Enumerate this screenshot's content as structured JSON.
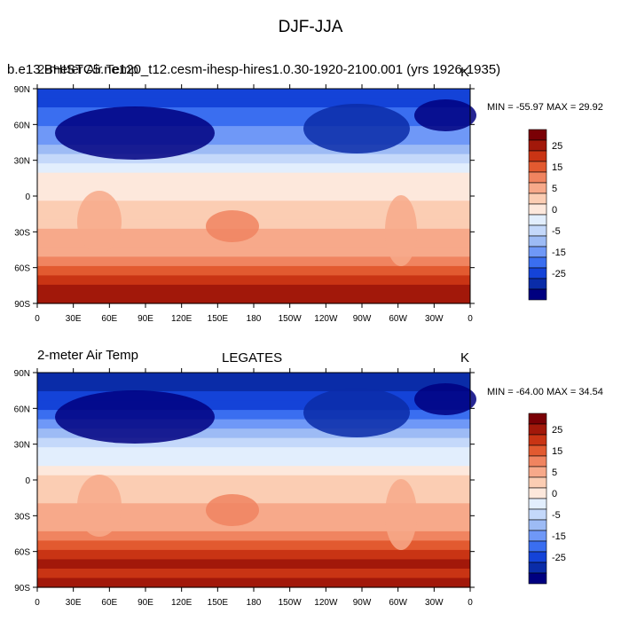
{
  "title": "DJF-JJA",
  "palette": [
    "#000080",
    "#0a2ca8",
    "#1443d8",
    "#3a6ef0",
    "#6f98f7",
    "#9dbbf5",
    "#c4d8fa",
    "#e2eefd",
    "#fde8dc",
    "#fbcdb3",
    "#f7a98a",
    "#f08460",
    "#e25a30",
    "#c93414",
    "#a2180a",
    "#7a0005"
  ],
  "colorbar": {
    "labels": [
      "25",
      "15",
      "5",
      "0",
      "-5",
      "-15",
      "-25"
    ]
  },
  "lat_ticks": [
    "90N",
    "60N",
    "30N",
    "0",
    "30S",
    "60S",
    "90S"
  ],
  "lon_ticks": [
    "0",
    "30E",
    "60E",
    "90E",
    "120E",
    "150E",
    "180",
    "150W",
    "120W",
    "90W",
    "60W",
    "30W",
    "0"
  ],
  "panels": [
    {
      "left_title": "b.e13.BHISTC5.ne120_t12.cesm-ihesp-hires1.0.30-1920-2100.001 (yrs 1926-1935)",
      "left_title_overlay": "2-meter Air Temp",
      "center_title": "",
      "right_title": "K",
      "stats": "MIN = -55.97 MAX =  29.92"
    },
    {
      "left_title": "2-meter Air Temp",
      "left_title_overlay": "",
      "center_title": "LEGATES",
      "right_title": "K",
      "stats": "MIN = -64.00 MAX =  34.54"
    }
  ]
}
